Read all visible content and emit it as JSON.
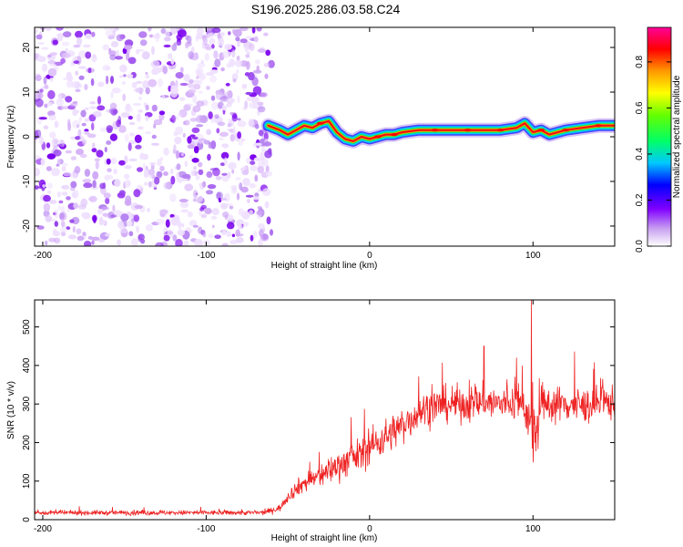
{
  "title": "S196.2025.286.03.58.C24",
  "chart_data": [
    {
      "type": "heatmap",
      "title": "S196.2025.286.03.58.C24",
      "xlabel": "Height of straight line (km)",
      "ylabel": "Frequency (Hz)",
      "xlim": [
        -205,
        150
      ],
      "ylim": [
        -24.5,
        24.5
      ],
      "xticks": [
        -200,
        -100,
        0,
        100
      ],
      "yticks": [
        -20,
        -10,
        0,
        10,
        20
      ],
      "colorbar": {
        "label": "Normalized spectral amplitude",
        "range": [
          0,
          0.95
        ],
        "ticks": [
          0.0,
          0.2,
          0.4,
          0.6,
          0.8
        ]
      },
      "noise_region_x": [
        -205,
        -60
      ],
      "ridge": {
        "x": [
          -62,
          -55,
          -50,
          -45,
          -40,
          -35,
          -30,
          -25,
          -20,
          -15,
          -10,
          -5,
          0,
          5,
          10,
          15,
          20,
          30,
          40,
          60,
          80,
          90,
          95,
          100,
          105,
          110,
          120,
          130,
          140,
          150
        ],
        "freq": [
          2.5,
          1.5,
          0.5,
          1.5,
          2.5,
          2.0,
          3.0,
          3.5,
          1.0,
          -0.5,
          -1.0,
          0.0,
          -0.5,
          0.0,
          0.5,
          0.5,
          1.0,
          1.5,
          1.5,
          1.5,
          1.5,
          2.0,
          3.0,
          1.0,
          1.5,
          0.5,
          1.5,
          2.0,
          2.5,
          2.5
        ]
      }
    },
    {
      "type": "line",
      "xlabel": "Height of straight line (km)",
      "ylabel": "SNR (10 * v/v)",
      "xlim": [
        -205,
        150
      ],
      "ylim": [
        0,
        570
      ],
      "xticks": [
        -200,
        -100,
        0,
        100
      ],
      "yticks": [
        0,
        100,
        200,
        300,
        400,
        500
      ],
      "series": [
        {
          "name": "SNR",
          "color": "#ee2222",
          "x": [
            -205,
            -180,
            -150,
            -120,
            -100,
            -80,
            -65,
            -55,
            -50,
            -45,
            -40,
            -35,
            -30,
            -25,
            -20,
            -15,
            -10,
            -5,
            0,
            5,
            10,
            15,
            20,
            25,
            30,
            40,
            50,
            60,
            70,
            80,
            90,
            95,
            98,
            100,
            105,
            110,
            120,
            130,
            140,
            150
          ],
          "mean": [
            18,
            18,
            18,
            18,
            18,
            18,
            18,
            30,
            60,
            80,
            95,
            105,
            115,
            125,
            140,
            150,
            160,
            170,
            190,
            200,
            215,
            230,
            245,
            260,
            280,
            295,
            300,
            300,
            305,
            300,
            305,
            295,
            250,
            200,
            290,
            300,
            300,
            295,
            300,
            305
          ],
          "spread": [
            10,
            10,
            11,
            11,
            11,
            11,
            11,
            15,
            25,
            35,
            45,
            50,
            55,
            60,
            65,
            70,
            75,
            75,
            80,
            80,
            80,
            80,
            80,
            80,
            80,
            80,
            80,
            80,
            80,
            80,
            80,
            90,
            120,
            160,
            90,
            80,
            80,
            80,
            80,
            80
          ],
          "peaks": [
            {
              "x": 99,
              "y": 570
            },
            {
              "x": 70,
              "y": 450
            },
            {
              "x": 90,
              "y": 420
            }
          ]
        }
      ]
    }
  ]
}
